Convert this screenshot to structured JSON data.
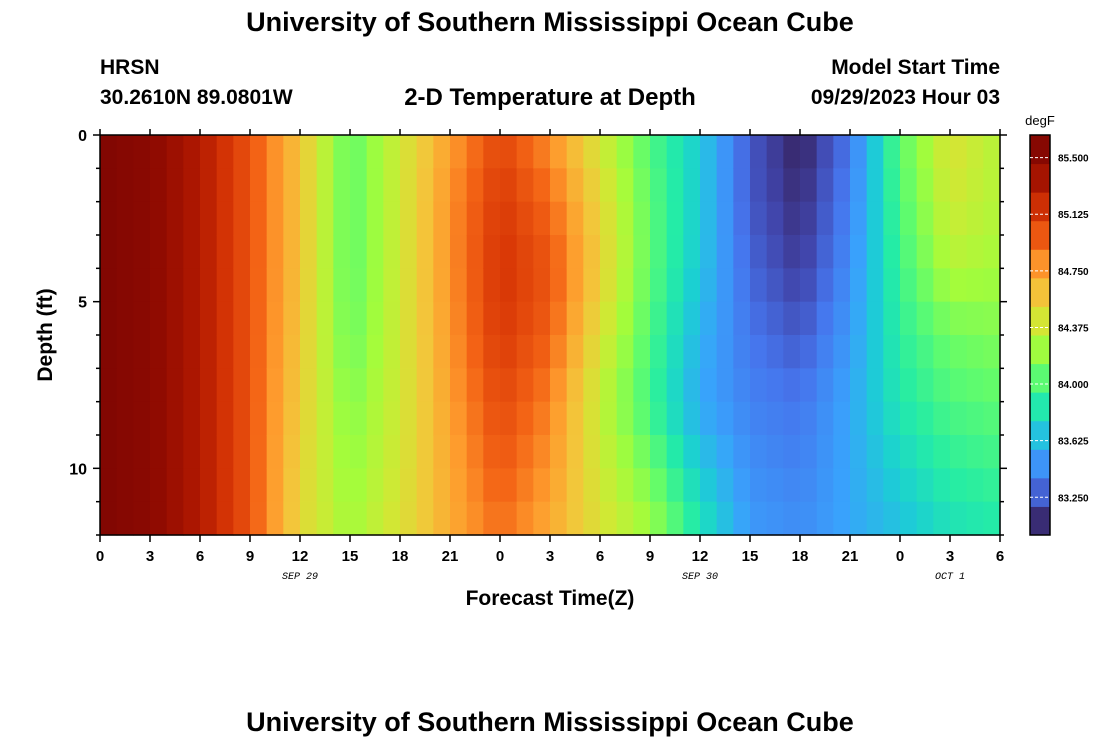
{
  "header": {
    "title": "University of Southern Mississippi Ocean Cube",
    "station": "HRSN",
    "coordinates": "30.2610N  89.0801W",
    "chart_title": "2-D Temperature at Depth",
    "model_label": "Model Start Time",
    "model_time": "09/29/2023 Hour 03"
  },
  "footer": {
    "title": "University of Southern Mississippi Ocean Cube"
  },
  "chart_data": {
    "type": "heatmap",
    "title": "2-D Temperature at Depth",
    "xlabel": "Forecast Time(Z)",
    "ylabel": "Depth (ft)",
    "units": "degF",
    "x_range_hours": [
      0,
      54
    ],
    "y_range_ft": [
      0,
      12
    ],
    "y_inverted": true,
    "x_ticks": [
      "0",
      "3",
      "6",
      "9",
      "12",
      "15",
      "18",
      "21",
      "0",
      "3",
      "6",
      "9",
      "12",
      "15",
      "18",
      "21",
      "0",
      "3",
      "6"
    ],
    "y_ticks": [
      "0",
      "5",
      "10"
    ],
    "date_labels": [
      {
        "text": "SEP 29",
        "hour": 12
      },
      {
        "text": "SEP 30",
        "hour": 36
      },
      {
        "text": "OCT 1",
        "hour": 51
      }
    ],
    "colorbar": {
      "label": "degF",
      "ticks": [
        "85.500",
        "85.125",
        "84.750",
        "84.375",
        "84.000",
        "83.625",
        "83.250"
      ],
      "tick_values": [
        85.5,
        85.125,
        84.75,
        84.375,
        84.0,
        83.625,
        83.25
      ],
      "vmin": 83.0,
      "vmax": 85.65
    },
    "depths_ft": [
      0,
      2,
      4,
      6,
      8,
      10,
      12
    ],
    "hours": [
      0,
      3,
      6,
      9,
      12,
      15,
      18,
      21,
      24,
      27,
      30,
      33,
      36,
      39,
      42,
      45,
      48,
      51,
      54
    ],
    "temperature_profiles": [
      [
        85.6,
        85.6,
        85.6,
        85.6,
        85.6,
        85.6,
        85.6
      ],
      [
        85.52,
        85.52,
        85.52,
        85.52,
        85.52,
        85.52,
        85.52
      ],
      [
        85.3,
        85.3,
        85.3,
        85.3,
        85.3,
        85.3,
        85.3
      ],
      [
        85.0,
        85.0,
        85.0,
        85.0,
        85.0,
        85.0,
        85.0
      ],
      [
        84.6,
        84.6,
        84.6,
        84.58,
        84.55,
        84.52,
        84.5
      ],
      [
        84.05,
        84.05,
        84.05,
        84.08,
        84.15,
        84.2,
        84.25
      ],
      [
        84.4,
        84.4,
        84.4,
        84.4,
        84.4,
        84.42,
        84.45
      ],
      [
        84.75,
        84.8,
        84.8,
        84.78,
        84.75,
        84.72,
        84.7
      ],
      [
        85.05,
        85.12,
        85.15,
        85.12,
        85.05,
        84.98,
        84.9
      ],
      [
        84.8,
        84.92,
        85.0,
        84.95,
        84.85,
        84.78,
        84.7
      ],
      [
        84.4,
        84.5,
        84.55,
        84.45,
        84.35,
        84.4,
        84.45
      ],
      [
        84.0,
        84.05,
        84.05,
        84.0,
        83.95,
        84.1,
        84.25
      ],
      [
        83.7,
        83.7,
        83.68,
        83.6,
        83.55,
        83.7,
        83.85
      ],
      [
        83.25,
        83.25,
        83.3,
        83.35,
        83.4,
        83.45,
        83.5
      ],
      [
        83.05,
        83.1,
        83.15,
        83.25,
        83.35,
        83.4,
        83.45
      ],
      [
        83.35,
        83.4,
        83.45,
        83.5,
        83.55,
        83.55,
        83.55
      ],
      [
        84.05,
        84.0,
        83.95,
        83.9,
        83.85,
        83.75,
        83.65
      ],
      [
        84.45,
        84.4,
        84.3,
        84.1,
        84.0,
        83.9,
        83.8
      ],
      [
        84.3,
        84.3,
        84.25,
        84.15,
        84.05,
        83.95,
        83.85
      ]
    ]
  }
}
